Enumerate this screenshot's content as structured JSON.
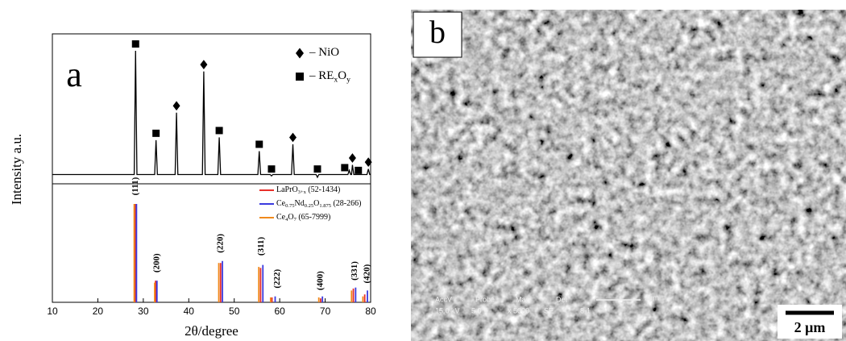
{
  "chart_data": {
    "type": "xrd",
    "xlabel": "2θ/degree",
    "ylabel": "Intensity a.u.",
    "panel_label": "a",
    "xlim": [
      10,
      80
    ],
    "xticks": [
      10,
      20,
      30,
      40,
      50,
      60,
      70,
      80
    ],
    "pattern": {
      "ylim": [
        0,
        105
      ],
      "color": "#000000",
      "x": [
        10,
        28.0,
        28.3,
        28.6,
        32.5,
        32.8,
        33.1,
        37.0,
        37.3,
        37.6,
        43.0,
        43.3,
        43.6,
        46.4,
        46.7,
        47.0,
        55.2,
        55.5,
        55.8,
        57.9,
        58.2,
        58.5,
        62.6,
        62.9,
        63.2,
        68.0,
        68.3,
        68.6,
        75.0,
        75.3,
        75.6,
        75.8,
        76.0,
        76.3,
        77.0,
        77.3,
        77.6,
        79.2,
        79.5,
        79.8,
        80
      ],
      "values": [
        5,
        5,
        95,
        5,
        5,
        30,
        5,
        5,
        50,
        5,
        5,
        80,
        5,
        5,
        32,
        5,
        5,
        22,
        5,
        5,
        4,
        5,
        5,
        27,
        5,
        5,
        3,
        5,
        5,
        8,
        5,
        5,
        12,
        5,
        5,
        5,
        5,
        5,
        9,
        5,
        5
      ],
      "markers": [
        {
          "x": 28.3,
          "y": 100,
          "symbol": "square"
        },
        {
          "x": 32.8,
          "y": 35,
          "symbol": "square"
        },
        {
          "x": 37.3,
          "y": 55,
          "symbol": "diamond"
        },
        {
          "x": 43.3,
          "y": 85,
          "symbol": "diamond"
        },
        {
          "x": 46.7,
          "y": 37,
          "symbol": "square"
        },
        {
          "x": 55.5,
          "y": 27,
          "symbol": "square"
        },
        {
          "x": 58.2,
          "y": 9,
          "symbol": "square"
        },
        {
          "x": 62.9,
          "y": 32,
          "symbol": "diamond"
        },
        {
          "x": 68.3,
          "y": 9,
          "symbol": "square"
        },
        {
          "x": 74.3,
          "y": 10,
          "symbol": "square"
        },
        {
          "x": 76.0,
          "y": 17,
          "symbol": "diamond"
        },
        {
          "x": 77.3,
          "y": 8,
          "symbol": "square"
        },
        {
          "x": 79.5,
          "y": 14,
          "symbol": "diamond"
        }
      ],
      "legend": [
        {
          "symbol": "diamond",
          "name_parts": [
            "– NiO"
          ]
        },
        {
          "symbol": "square",
          "name_parts": [
            "– RE",
            "x",
            "O",
            "y"
          ]
        }
      ]
    },
    "references": {
      "ylim": [
        0,
        100
      ],
      "series": [
        {
          "name_parts": [
            "LaPrO",
            "3+x",
            " (52-1434)"
          ],
          "color": "#e8302a",
          "x": [
            28.2,
            32.7,
            47.0,
            55.8,
            58.3,
            69.0,
            76.2,
            78.7
          ],
          "values": [
            100,
            22,
            40,
            35,
            5,
            4,
            14,
            8
          ]
        },
        {
          "name_parts": [
            "Ce",
            "0.75",
            "Nd",
            "0.25",
            "O",
            "1.875",
            " (28-266)"
          ],
          "color": "#3a3adf",
          "x": [
            28.5,
            33.0,
            47.4,
            56.3,
            59.0,
            69.4,
            76.7,
            79.3
          ],
          "values": [
            100,
            22,
            42,
            38,
            6,
            6,
            15,
            12
          ]
        },
        {
          "name_parts": [
            "Ce",
            "4",
            "O",
            "7",
            " (65-7999)"
          ],
          "color": "#f08a1c",
          "x": [
            28.0,
            32.5,
            46.6,
            55.4,
            58.0,
            68.6,
            75.8,
            78.3
          ],
          "values": [
            100,
            20,
            40,
            36,
            5,
            5,
            12,
            6
          ]
        }
      ],
      "annotations": [
        {
          "text": "(111)",
          "x": 28.3,
          "y": 118
        },
        {
          "text": "(200)",
          "x": 33.0,
          "y": 40
        },
        {
          "text": "(220)",
          "x": 47.0,
          "y": 60
        },
        {
          "text": "(311)",
          "x": 56.0,
          "y": 57
        },
        {
          "text": "(222)",
          "x": 59.5,
          "y": 24
        },
        {
          "text": "(400)",
          "x": 69.0,
          "y": 22
        },
        {
          "text": "(331)",
          "x": 76.5,
          "y": 32
        },
        {
          "text": "(420)",
          "x": 79.3,
          "y": 29
        }
      ]
    }
  },
  "image": {
    "panel_label": "b",
    "scale_bar": "2 μm",
    "info_header": [
      "AccV",
      "Probe",
      "Mag",
      "Det"
    ],
    "info_values": [
      "15.0 kV",
      "5.0",
      "x 5000",
      "SE",
      "8-1"
    ],
    "info_bar": "2μm"
  }
}
